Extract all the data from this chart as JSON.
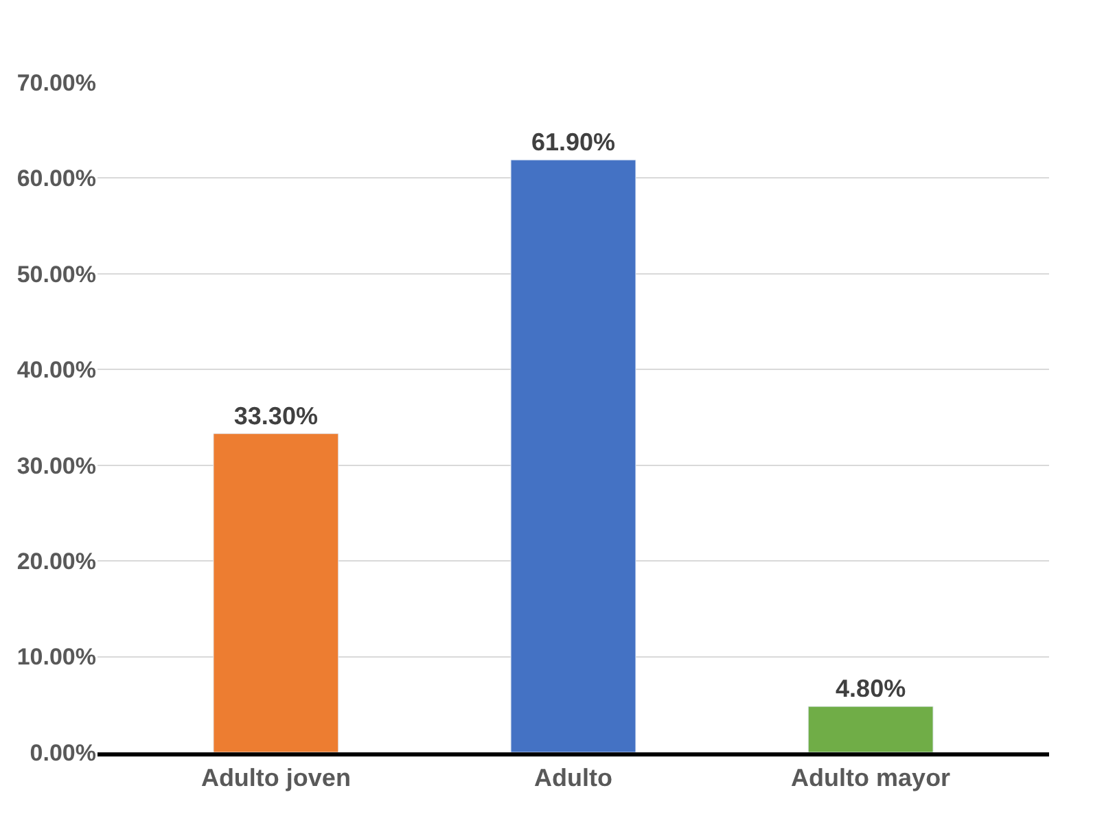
{
  "chart_data": {
    "type": "bar",
    "categories": [
      "Adulto joven",
      "Adulto",
      "Adulto mayor"
    ],
    "values": [
      33.3,
      61.9,
      4.8
    ],
    "colors": [
      "#ed7d31",
      "#4472c4",
      "#70ad47"
    ],
    "value_labels": [
      "33.30%",
      "61.90%",
      "4.80%"
    ],
    "ylim": [
      0,
      70
    ],
    "yticks": [
      {
        "value": 0,
        "label": "0.00%"
      },
      {
        "value": 10,
        "label": "10.00%"
      },
      {
        "value": 20,
        "label": "20.00%"
      },
      {
        "value": 30,
        "label": "30.00%"
      },
      {
        "value": 40,
        "label": "40.00%"
      },
      {
        "value": 50,
        "label": "50.00%"
      },
      {
        "value": 60,
        "label": "60.00%"
      },
      {
        "value": 70,
        "label": "70.00%"
      }
    ],
    "grid": "y"
  }
}
